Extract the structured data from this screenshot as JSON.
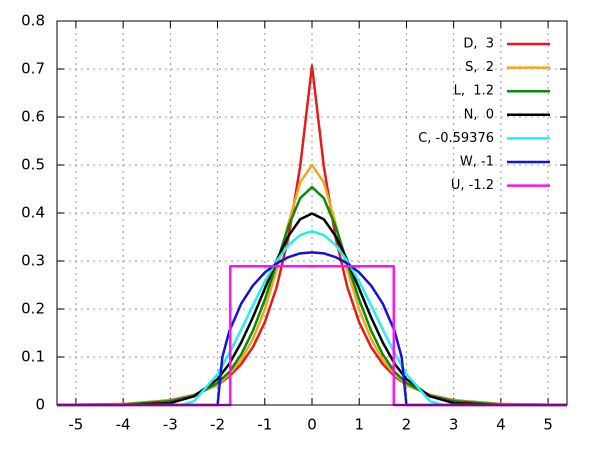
{
  "chart_data": {
    "type": "line",
    "xlim": [
      -5.4,
      5.4
    ],
    "ylim": [
      0,
      0.8
    ],
    "xticks": [
      -5,
      -4,
      -3,
      -2,
      -1,
      0,
      1,
      2,
      3,
      4,
      5
    ],
    "yticks": [
      0,
      0.1,
      0.2,
      0.3,
      0.4,
      0.5,
      0.6,
      0.7,
      0.8
    ],
    "grid": true,
    "legend": "top-right",
    "series": [
      {
        "name": "D,  3",
        "color": "#e41a1c",
        "x": [
          -5.4,
          -4,
          -3,
          -2.5,
          -2,
          -1.75,
          -1.5,
          -1.25,
          -1,
          -0.75,
          -0.5,
          -0.25,
          0,
          0.25,
          0.5,
          0.75,
          1,
          1.25,
          1.5,
          1.75,
          2,
          2.5,
          3,
          4,
          5.4
        ],
        "values": [
          0,
          0.002,
          0.01,
          0.021,
          0.042,
          0.06,
          0.085,
          0.121,
          0.172,
          0.245,
          0.349,
          0.497,
          0.707,
          0.497,
          0.349,
          0.245,
          0.172,
          0.121,
          0.085,
          0.06,
          0.042,
          0.021,
          0.01,
          0.002,
          0
        ]
      },
      {
        "name": "S,  2",
        "color": "#f0a81c",
        "x": [
          -5.4,
          -4,
          -3,
          -2.5,
          -2,
          -1.75,
          -1.5,
          -1.25,
          -1,
          -0.75,
          -0.5,
          -0.25,
          0,
          0.25,
          0.5,
          0.75,
          1,
          1.25,
          1.5,
          1.75,
          2,
          2.5,
          3,
          4,
          5.4
        ],
        "values": [
          0,
          0.002,
          0.009,
          0.02,
          0.043,
          0.064,
          0.094,
          0.138,
          0.199,
          0.281,
          0.378,
          0.464,
          0.5,
          0.464,
          0.378,
          0.281,
          0.199,
          0.138,
          0.094,
          0.064,
          0.043,
          0.02,
          0.009,
          0.002,
          0
        ]
      },
      {
        "name": "L,  1.2",
        "color": "#0a8a0a",
        "x": [
          -5.4,
          -4,
          -3,
          -2.5,
          -2,
          -1.75,
          -1.5,
          -1.25,
          -1,
          -0.75,
          -0.5,
          -0.25,
          0,
          0.25,
          0.5,
          0.75,
          1,
          1.25,
          1.5,
          1.75,
          2,
          2.5,
          3,
          4,
          5.4
        ],
        "values": [
          0,
          0.001,
          0.008,
          0.019,
          0.046,
          0.069,
          0.105,
          0.155,
          0.219,
          0.295,
          0.372,
          0.431,
          0.454,
          0.431,
          0.372,
          0.295,
          0.219,
          0.155,
          0.105,
          0.069,
          0.046,
          0.019,
          0.008,
          0.001,
          0
        ]
      },
      {
        "name": "N,  0",
        "color": "#000000",
        "x": [
          -5.4,
          -4,
          -3,
          -2.5,
          -2,
          -1.75,
          -1.5,
          -1.25,
          -1,
          -0.75,
          -0.5,
          -0.25,
          0,
          0.25,
          0.5,
          0.75,
          1,
          1.25,
          1.5,
          1.75,
          2,
          2.5,
          3,
          4,
          5.4
        ],
        "values": [
          0,
          0,
          0.004,
          0.018,
          0.054,
          0.086,
          0.13,
          0.183,
          0.242,
          0.301,
          0.352,
          0.387,
          0.399,
          0.387,
          0.352,
          0.301,
          0.242,
          0.183,
          0.13,
          0.086,
          0.054,
          0.018,
          0.004,
          0,
          0
        ]
      },
      {
        "name": "C, -0.59376",
        "color": "#22f0f0",
        "x": [
          -5.4,
          -2.766,
          -2.5,
          -2,
          -1.75,
          -1.5,
          -1.25,
          -1,
          -0.75,
          -0.5,
          -0.25,
          0,
          0.25,
          0.5,
          0.75,
          1,
          1.25,
          1.5,
          1.75,
          2,
          2.5,
          2.766,
          5.4
        ],
        "values": [
          0,
          0,
          0.008,
          0.064,
          0.108,
          0.157,
          0.208,
          0.257,
          0.3,
          0.333,
          0.354,
          0.362,
          0.354,
          0.333,
          0.3,
          0.257,
          0.208,
          0.157,
          0.108,
          0.064,
          0.008,
          0,
          0
        ]
      },
      {
        "name": "W, -1",
        "color": "#1515d0",
        "x": [
          -5.4,
          -2,
          -1.9,
          -1.75,
          -1.5,
          -1.25,
          -1,
          -0.75,
          -0.5,
          -0.25,
          0,
          0.25,
          0.5,
          0.75,
          1,
          1.25,
          1.5,
          1.75,
          1.9,
          2,
          5.4
        ],
        "values": [
          0,
          0,
          0.099,
          0.154,
          0.211,
          0.249,
          0.276,
          0.295,
          0.308,
          0.316,
          0.318,
          0.316,
          0.308,
          0.295,
          0.276,
          0.249,
          0.211,
          0.154,
          0.099,
          0,
          0
        ]
      },
      {
        "name": "U, -1.2",
        "color": "#ff10ff",
        "x": [
          -5.4,
          -1.732,
          -1.732,
          1.732,
          1.732,
          5.4
        ],
        "values": [
          0,
          0,
          0.289,
          0.289,
          0,
          0
        ]
      }
    ]
  }
}
